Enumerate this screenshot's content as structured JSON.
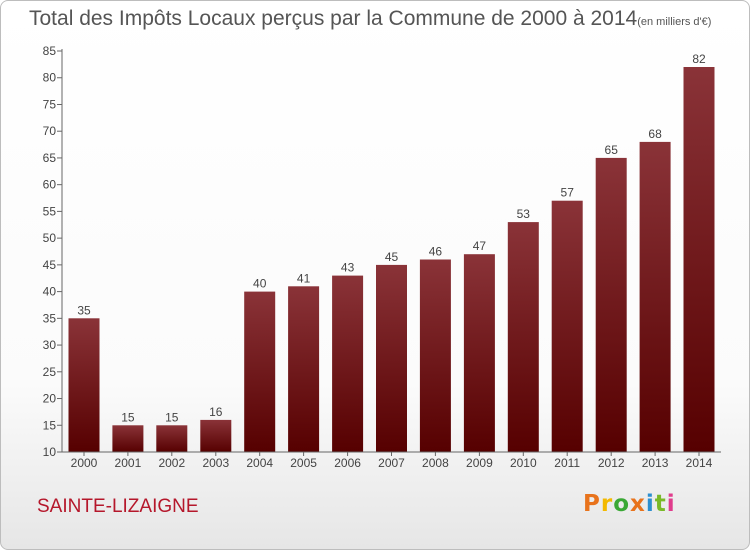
{
  "page": {
    "title": "Total des Impôts Locaux perçus par la Commune de 2000 à 2014",
    "subtitle": "(en milliers d'€)",
    "commune": "SAINTE-LIZAIGNE",
    "logo_text": "Proxiti"
  },
  "colors": {
    "bar_top": "#8a3338",
    "bar_bottom": "#560000",
    "commune": "#b5172b",
    "logo": [
      "#e8731c",
      "#f3b900",
      "#3aa835",
      "#e8731c",
      "#2c8fd0",
      "#79b928",
      "#e03c8c"
    ]
  },
  "chart_data": {
    "type": "bar",
    "title": "Total des Impôts Locaux perçus par la Commune de 2000 à 2014",
    "subtitle": "(en milliers d'€)",
    "categories": [
      "2000",
      "2001",
      "2002",
      "2003",
      "2004",
      "2005",
      "2006",
      "2007",
      "2008",
      "2009",
      "2010",
      "2011",
      "2012",
      "2013",
      "2014"
    ],
    "values": [
      35,
      15,
      15,
      16,
      40,
      41,
      43,
      45,
      46,
      47,
      53,
      57,
      65,
      68,
      82
    ],
    "xlabel": "",
    "ylabel": "",
    "ylim": [
      10,
      85
    ],
    "yticks": [
      10,
      15,
      20,
      25,
      30,
      35,
      40,
      45,
      50,
      55,
      60,
      65,
      70,
      75,
      80,
      85
    ],
    "grid": false,
    "data_labels": true
  }
}
